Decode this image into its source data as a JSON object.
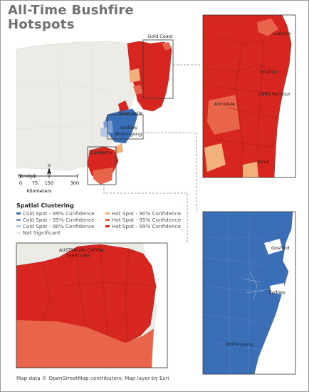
{
  "title_line1": "All-Time Bushfire",
  "title_line2": "Hotspots",
  "legend": {
    "title": "Spatial Clustering",
    "items": [
      {
        "label": "Cold Spot - 99% Confidence",
        "color": "#3a6fb7"
      },
      {
        "label": "Hot Spot - 90% Confidence",
        "color": "#f2b07c"
      },
      {
        "label": "Cold Spot - 95% Confidence",
        "color": "#7c9fd1"
      },
      {
        "label": "Hot Spot - 95% Confidence",
        "color": "#e8644a"
      },
      {
        "label": "Cold Spot - 90% Confidence",
        "color": "#b6c7e3"
      },
      {
        "label": "Hot Spot - 99% Confidence",
        "color": "#d7261f"
      },
      {
        "label": "Not Significant",
        "color": "#ecebe6"
      }
    ]
  },
  "scale": {
    "ticks": [
      "0",
      "75",
      "150",
      "300"
    ],
    "unit": "Kilometers"
  },
  "north_label": "N",
  "places": {
    "gold_coast": "Gold Coast",
    "newcastle": "Newcastle",
    "sydney": "Sydney",
    "wollongong": "Wollongong",
    "canberra": "Canberra",
    "bendigo": "Bendigo",
    "grafton": "Grafton",
    "coffs_harbour": "Coffs Harbour",
    "armidale": "Armidale",
    "lismore": "Lismore",
    "taree": "Taree",
    "act_line1": "AUSTRALIAN CAPITAL",
    "act_line2": "TERRITORY",
    "gosford": "Gosford",
    "sydney_inset": "Sydney",
    "wollongong_inset": "Wollongong"
  },
  "credit": "Map data © OpenStreetMap contributors, Map layer by Esri",
  "colors": {
    "hot99": "#d7261f",
    "hot95": "#e8644a",
    "hot90": "#f2b07c",
    "cold99": "#3a6fb7",
    "cold95": "#7c9fd1",
    "cold90": "#b6c7e3",
    "not_significant": "#ecebe6",
    "sea": "#ffffff"
  }
}
